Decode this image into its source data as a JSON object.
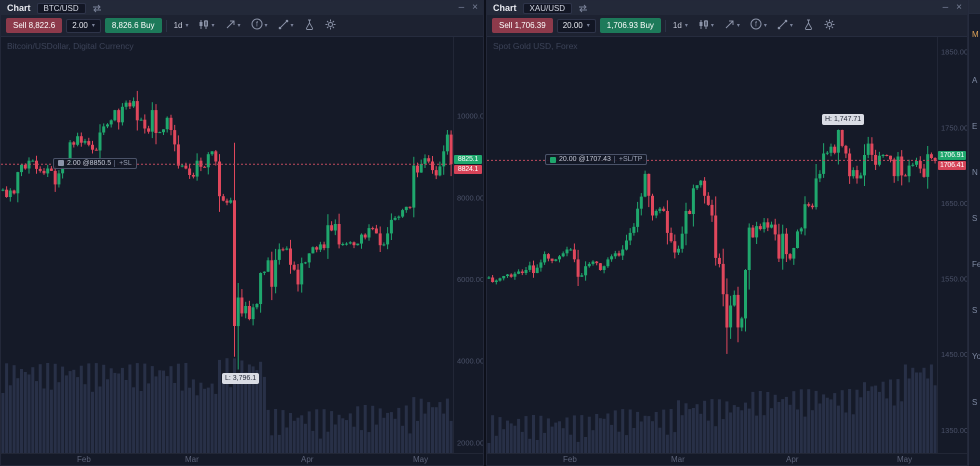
{
  "colors": {
    "up": "#1fa76d",
    "down": "#e0475c",
    "volume": "#3b4666",
    "price_line": "#c04a5e",
    "sell_button": "#8d3a4b",
    "buy_button": "#1d7a5a",
    "background": "#151a28"
  },
  "icons": {
    "caret": "▾",
    "minimize": "–",
    "close": "×"
  },
  "sidebar": {
    "fragments": [
      {
        "t": "M",
        "c": "#e0a458"
      },
      {
        "t": "A",
        "c": "#7f8aa3"
      },
      {
        "t": "E",
        "c": "#7f8aa3"
      },
      {
        "t": "N",
        "c": "#7f8aa3"
      },
      {
        "t": "S",
        "c": "#7f8aa3"
      },
      {
        "t": "Fe",
        "c": "#7f8aa3"
      },
      {
        "t": "S",
        "c": "#7f8aa3"
      },
      {
        "t": "Yo",
        "c": "#7f8aa3"
      },
      {
        "t": "S",
        "c": "#7f8aa3"
      }
    ]
  },
  "panels": [
    {
      "titlebar": {
        "tab": "Chart",
        "symbol": "BTC/USD"
      },
      "toolbar": {
        "sell_label": "Sell 8,822.6",
        "qty": "2.00",
        "buy_label": "8,826.6 Buy",
        "timeframe": "1d"
      },
      "watermark": "Bitcoin/USDollar, Digital Currency",
      "position_tag": {
        "label": "2.00 @8850.5",
        "extra": "+SL",
        "price": 8850.5,
        "x": 52,
        "marker_color": "#8b93a8"
      },
      "axis_tags": {
        "ask": "8825.1",
        "bid": "8824.1"
      },
      "chart_data": {
        "type": "candlestick",
        "title": "BTC/USD 1d",
        "price_line": 8825.1,
        "y_range": [
          1750,
          11940
        ],
        "y_ticks": [
          10000,
          8000,
          6000,
          4000,
          2000
        ],
        "months": [
          {
            "label": "Feb",
            "i": 22
          },
          {
            "label": "Mar",
            "i": 51
          },
          {
            "label": "Apr",
            "i": 82
          },
          {
            "label": "May",
            "i": 112
          }
        ],
        "extreme": {
          "i": 63,
          "price": 3796.1,
          "label": "L: 3,796.1",
          "side": "below"
        },
        "low_override": {
          "62": 4110,
          "63": 3796.1
        },
        "high_override": {},
        "closes": [
          8200,
          8020,
          8180,
          8110,
          8630,
          8810,
          8720,
          8910,
          8910,
          8710,
          8660,
          8600,
          8720,
          8660,
          8330,
          8600,
          8900,
          8870,
          9360,
          9300,
          9510,
          9350,
          9390,
          9300,
          9180,
          9160,
          9600,
          9750,
          9800,
          9900,
          10150,
          9850,
          10230,
          10330,
          10240,
          10370,
          9900,
          9915,
          9700,
          9620,
          10150,
          9590,
          9610,
          9680,
          9960,
          9660,
          9310,
          8790,
          8790,
          8720,
          8560,
          8520,
          8910,
          8760,
          8750,
          9070,
          9140,
          8890,
          8040,
          7930,
          7880,
          7940,
          4860,
          5560,
          5170,
          5350,
          5030,
          5320,
          5400,
          6160,
          6190,
          6470,
          5820,
          6480,
          6740,
          6730,
          6760,
          6360,
          6240,
          5880,
          6400,
          6420,
          6640,
          6790,
          6730,
          6860,
          6770,
          7330,
          7200,
          7360,
          6860,
          6870,
          6880,
          6910,
          6840,
          6880,
          7100,
          7030,
          7260,
          7250,
          7130,
          6840,
          6860,
          7130,
          7460,
          7510,
          7540,
          7700,
          7780,
          7760,
          8790,
          8620,
          8830,
          8970,
          8890,
          8680,
          8550,
          8770,
          9140,
          9550,
          8825
        ],
        "volume_profile": [
          [
            0,
            60
          ],
          [
            51,
            45
          ],
          [
            58,
            65
          ],
          [
            71,
            14
          ],
          [
            95,
            18
          ],
          [
            110,
            26
          ]
        ],
        "volume_amp": 30
      }
    },
    {
      "titlebar": {
        "tab": "Chart",
        "symbol": "XAU/USD"
      },
      "toolbar": {
        "sell_label": "Sell 1,706.39",
        "qty": "20.00",
        "buy_label": "1,706.93 Buy",
        "timeframe": "1d"
      },
      "watermark": "Spot Gold USD, Forex",
      "position_tag": {
        "label": "20.00 @1707.43",
        "extra": "+SL/TP",
        "price": 1707.43,
        "x": 58,
        "marker_color": "#1fa76d"
      },
      "axis_tags": {
        "ask": "1706.91",
        "bid": "1706.41"
      },
      "chart_data": {
        "type": "candlestick",
        "title": "XAU/USD 1d",
        "price_line": 1706.9,
        "y_range": [
          1320,
          1870
        ],
        "y_ticks": [
          1850,
          1750,
          1650,
          1550,
          1450,
          1350
        ],
        "months": [
          {
            "label": "Feb",
            "i": 22
          },
          {
            "label": "Mar",
            "i": 51
          },
          {
            "label": "Apr",
            "i": 82
          },
          {
            "label": "May",
            "i": 112
          }
        ],
        "extreme": {
          "i": 94,
          "price": 1747.71,
          "label": "H: 1,747.71",
          "side": "above"
        },
        "low_override": {
          "64": 1451
        },
        "high_override": {
          "94": 1747.71
        },
        "closes": [
          1552,
          1546,
          1548,
          1551,
          1554,
          1556,
          1553,
          1557,
          1560,
          1558,
          1562,
          1568,
          1558,
          1565,
          1572,
          1583,
          1577,
          1574,
          1576,
          1580,
          1584,
          1589,
          1589,
          1576,
          1553,
          1555,
          1567,
          1570,
          1573,
          1571,
          1562,
          1567,
          1576,
          1580,
          1584,
          1581,
          1589,
          1601,
          1611,
          1619,
          1643,
          1659,
          1689,
          1660,
          1634,
          1640,
          1643,
          1640,
          1611,
          1600,
          1585,
          1590,
          1610,
          1640,
          1636,
          1670,
          1674,
          1680,
          1660,
          1648,
          1634,
          1578,
          1570,
          1530,
          1486,
          1515,
          1529,
          1486,
          1498,
          1562,
          1618,
          1605,
          1620,
          1616,
          1625,
          1618,
          1622,
          1609,
          1577,
          1610,
          1583,
          1577,
          1591,
          1613,
          1617,
          1649,
          1647,
          1645,
          1683,
          1689,
          1716,
          1717,
          1725,
          1717,
          1747,
          1726,
          1716,
          1686,
          1694,
          1683,
          1687,
          1714,
          1729,
          1714,
          1701,
          1713,
          1714,
          1713,
          1708,
          1686,
          1712,
          1687,
          1686,
          1700,
          1701,
          1706,
          1696,
          1685,
          1715,
          1710,
          1706
        ],
        "volume_profile": [
          [
            0,
            10
          ],
          [
            29,
            16
          ],
          [
            51,
            26
          ],
          [
            70,
            34
          ],
          [
            82,
            36
          ],
          [
            100,
            46
          ],
          [
            112,
            62
          ]
        ],
        "volume_amp": 28
      }
    }
  ]
}
